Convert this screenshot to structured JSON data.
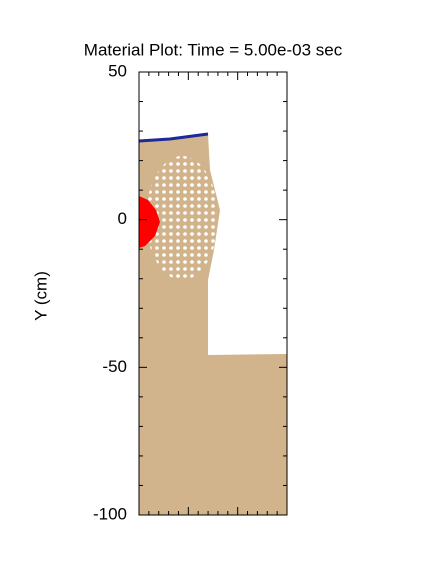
{
  "chart_data": {
    "type": "material_plot",
    "title": "Material Plot: Time = 5.00e-03 sec",
    "y_label": "Y (cm)",
    "ylim": [
      -100,
      50
    ],
    "yticks": [
      50,
      0,
      -50,
      -100
    ],
    "yminorticks": [
      40,
      30,
      20,
      10,
      -10,
      -20,
      -30,
      -40,
      -60,
      -70,
      -80,
      -90
    ]
  }
}
